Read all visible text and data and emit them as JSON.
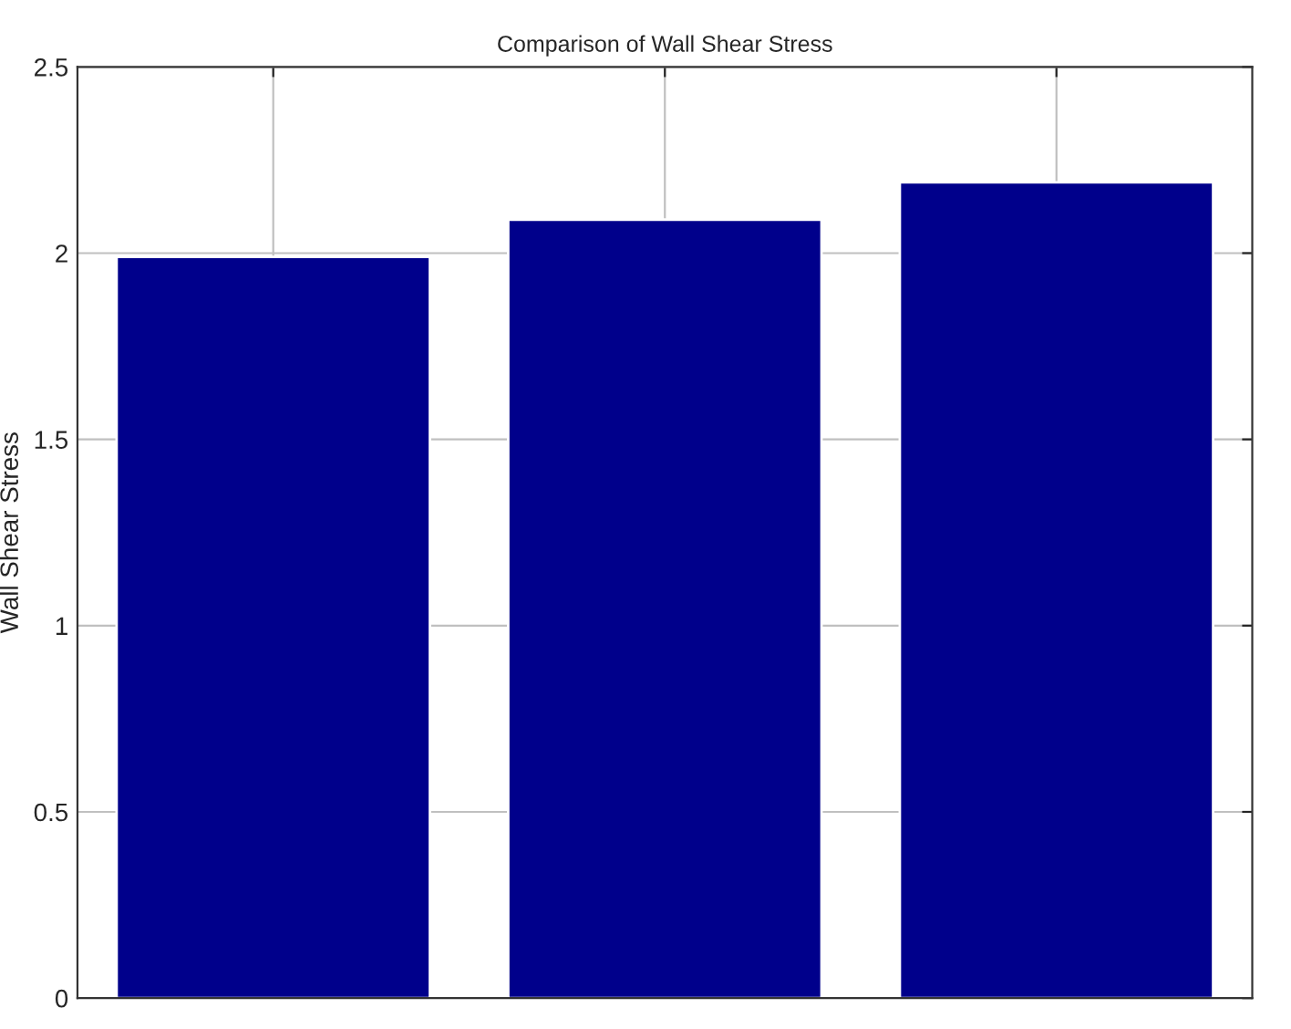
{
  "chart_data": {
    "type": "bar",
    "title": "Comparison of Wall Shear Stress",
    "ylabel": "Wall Shear Stress",
    "categories": [
      null,
      null,
      null
    ],
    "values": [
      1.99,
      2.09,
      2.19
    ],
    "color": "#00008b",
    "ylim": [
      0,
      2.5
    ],
    "yticks": [
      0,
      0.5,
      1,
      1.5,
      2,
      2.5
    ],
    "grid": true,
    "tick_labels": "y"
  }
}
